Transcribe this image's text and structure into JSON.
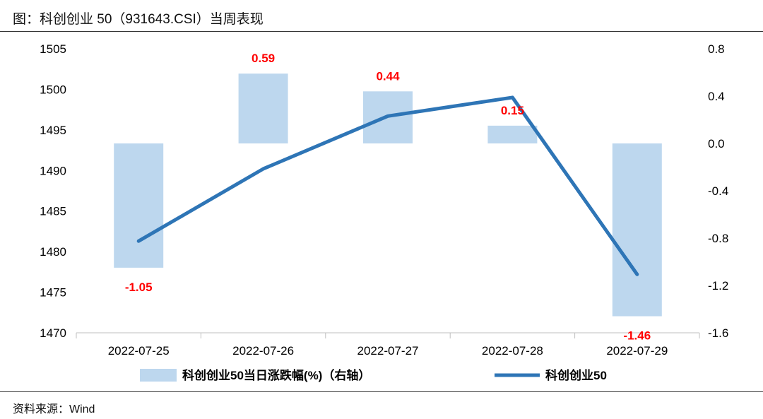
{
  "title": "图：科创创业 50（931643.CSI）当周表现",
  "source": "资料来源：Wind",
  "chart_data": {
    "type": "bar+line",
    "categories": [
      "2022-07-25",
      "2022-07-26",
      "2022-07-27",
      "2022-07-28",
      "2022-07-29"
    ],
    "series": [
      {
        "name": "科创创业50当日涨跌幅(%)（右轴）",
        "type": "bar",
        "axis": "right",
        "values": [
          -1.05,
          0.59,
          0.44,
          0.15,
          -1.46
        ],
        "labels": [
          "-1.05",
          "0.59",
          "0.44",
          "0.15",
          "-1.46"
        ],
        "color": "#bdd7ee"
      },
      {
        "name": "科创创业50",
        "type": "line",
        "axis": "left",
        "values": [
          1481.3,
          1490.2,
          1496.7,
          1499.0,
          1477.2
        ],
        "color": "#2e75b6"
      }
    ],
    "left_axis": {
      "ylim": [
        1470,
        1505
      ],
      "ticks": [
        "1470",
        "1475",
        "1480",
        "1485",
        "1490",
        "1495",
        "1500",
        "1505"
      ]
    },
    "right_axis": {
      "ylim": [
        -1.6,
        0.8
      ],
      "ticks": [
        "-1.6",
        "-1.2",
        "-0.8",
        "-0.4",
        "0.0",
        "0.4",
        "0.8"
      ]
    },
    "grid": false,
    "legend": "bottom"
  }
}
